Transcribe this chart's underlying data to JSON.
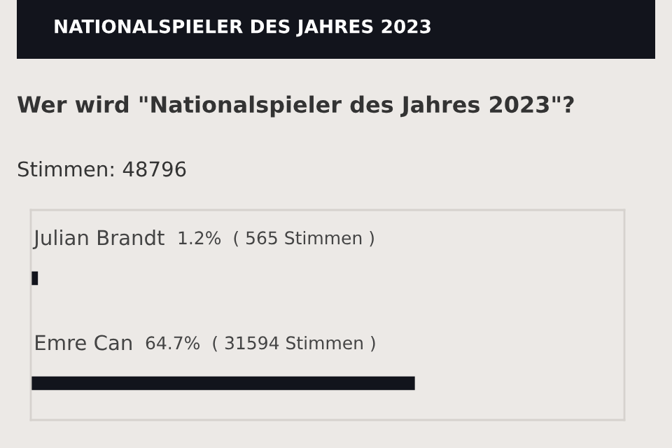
{
  "chart_data": {
    "type": "bar",
    "orientation": "horizontal",
    "title": "NATIONALSPIELER DES JAHRES 2023",
    "subtitle": "Wer wird \"Nationalspieler des Jahres 2023\"?",
    "annotations": [
      "Stimmen: 48796"
    ],
    "categories": [
      "Julian Brandt",
      "Emre Can"
    ],
    "values": [
      1.2,
      64.7
    ],
    "value_labels": [
      "1.2%  ( 565 Stimmen )",
      "64.7%  ( 31594 Stimmen )"
    ],
    "color": "#12141c",
    "xlim": [
      0,
      100
    ],
    "tick_labels": false
  }
}
